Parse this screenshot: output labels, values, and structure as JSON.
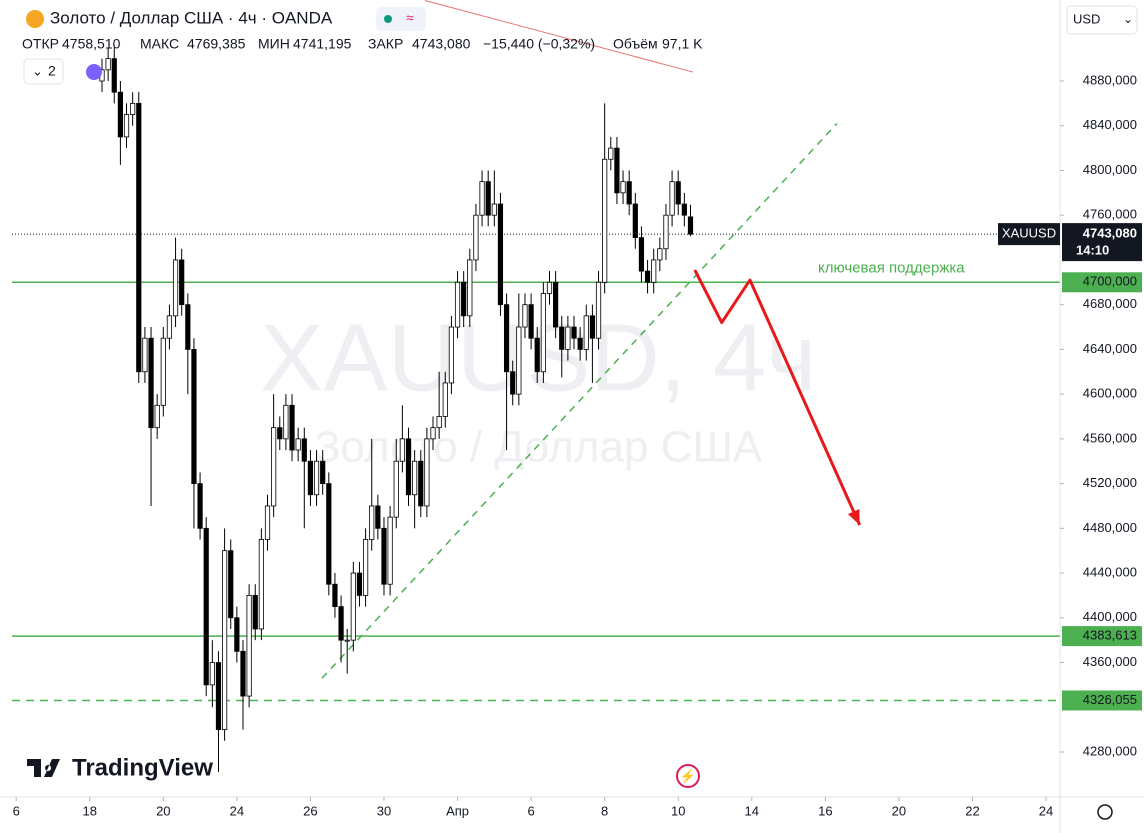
{
  "chart_data": {
    "type": "candlestick",
    "header": {
      "title": "Золото / Доллар США · 4ч · OANDA",
      "open_label": "ОТКР",
      "open": "4758,510",
      "high_label": "МАКС",
      "high": "4769,385",
      "low_label": "МИН",
      "low": "4741,195",
      "close_label": "ЗАКР",
      "close": "4743,080",
      "change": "−15,440 (−0,32%)",
      "volume_label": "Объём",
      "volume": "97,1 K",
      "indicators_count": "2"
    },
    "currency": "USD",
    "symbol_tag": "XAUUSD",
    "countdown": "14:10",
    "watermark": {
      "symbol": "XAUUSD, 4ч",
      "name": "Золото / Доллар США"
    },
    "brand": "TradingView",
    "annotation": "ключевая поддержка",
    "open": [
      4880,
      4890,
      4900,
      4870,
      4830,
      4850,
      4860,
      4620,
      4650,
      4570,
      4590,
      4650,
      4670,
      4720,
      4680,
      4640,
      4520,
      4480,
      4340,
      4360,
      4300,
      4460,
      4400,
      4370,
      4330,
      4420,
      4390,
      4470,
      4500,
      4570,
      4560,
      4590,
      4550,
      4560,
      4540,
      4510,
      4540,
      4520,
      4430,
      4410,
      4380,
      4380,
      4440,
      4420,
      4470,
      4500,
      4480,
      4430,
      4490,
      4540,
      4560,
      4510,
      4540,
      4500,
      4560,
      4570,
      4580,
      4610,
      4660,
      4700,
      4670,
      4720,
      4760,
      4790,
      4760,
      4770,
      4680,
      4620,
      4600,
      4660,
      4680,
      4650,
      4620,
      4690,
      4700,
      4660,
      4640,
      4660,
      4650,
      4640,
      4670,
      4650,
      4700,
      4810,
      4820,
      4780,
      4790,
      4770,
      4740,
      4710,
      4700,
      4720,
      4730,
      4760,
      4790,
      4770,
      4758.51
    ],
    "high": [
      4900,
      4910,
      4910,
      4880,
      4860,
      4870,
      4870,
      4660,
      4660,
      4600,
      4660,
      4680,
      4740,
      4730,
      4690,
      4650,
      4530,
      4490,
      4380,
      4370,
      4480,
      4470,
      4410,
      4380,
      4430,
      4430,
      4480,
      4510,
      4600,
      4580,
      4600,
      4600,
      4570,
      4570,
      4550,
      4550,
      4550,
      4530,
      4440,
      4420,
      4390,
      4450,
      4450,
      4480,
      4560,
      4510,
      4490,
      4500,
      4560,
      4590,
      4570,
      4550,
      4550,
      4570,
      4580,
      4620,
      4620,
      4670,
      4710,
      4710,
      4730,
      4770,
      4800,
      4800,
      4800,
      4780,
      4690,
      4630,
      4690,
      4690,
      4690,
      4660,
      4700,
      4710,
      4710,
      4670,
      4670,
      4670,
      4660,
      4680,
      4680,
      4710,
      4860,
      4830,
      4830,
      4800,
      4800,
      4780,
      4750,
      4720,
      4730,
      4740,
      4770,
      4800,
      4800,
      4780,
      4769.385
    ],
    "low": [
      4870,
      4880,
      4860,
      4805,
      4820,
      4840,
      4610,
      4610,
      4500,
      4560,
      4580,
      4640,
      4660,
      4670,
      4600,
      4480,
      4470,
      4330,
      4320,
      4262,
      4290,
      4390,
      4360,
      4300,
      4320,
      4380,
      4380,
      4460,
      4490,
      4550,
      4550,
      4540,
      4540,
      4480,
      4500,
      4500,
      4510,
      4420,
      4400,
      4360,
      4350,
      4370,
      4410,
      4410,
      4460,
      4470,
      4420,
      4420,
      4480,
      4530,
      4500,
      4480,
      4490,
      4490,
      4550,
      4560,
      4570,
      4600,
      4650,
      4660,
      4660,
      4710,
      4750,
      4750,
      4750,
      4670,
      4550,
      4590,
      4590,
      4650,
      4640,
      4610,
      4610,
      4680,
      4650,
      4615,
      4630,
      4640,
      4630,
      4630,
      4610,
      4640,
      4690,
      4800,
      4770,
      4770,
      4760,
      4730,
      4700,
      4690,
      4690,
      4710,
      4720,
      4750,
      4760,
      4750,
      4741.195
    ],
    "close": [
      4890,
      4900,
      4870,
      4830,
      4850,
      4860,
      4620,
      4650,
      4570,
      4590,
      4650,
      4670,
      4720,
      4680,
      4640,
      4520,
      4480,
      4340,
      4360,
      4300,
      4460,
      4400,
      4370,
      4330,
      4420,
      4390,
      4470,
      4500,
      4570,
      4560,
      4590,
      4550,
      4560,
      4540,
      4510,
      4540,
      4520,
      4430,
      4410,
      4380,
      4380,
      4440,
      4420,
      4470,
      4500,
      4480,
      4430,
      4490,
      4540,
      4560,
      4510,
      4540,
      4500,
      4560,
      4570,
      4580,
      4610,
      4660,
      4700,
      4670,
      4720,
      4760,
      4790,
      4760,
      4770,
      4680,
      4620,
      4600,
      4660,
      4680,
      4650,
      4620,
      4690,
      4700,
      4660,
      4640,
      4660,
      4650,
      4640,
      4670,
      4650,
      4700,
      4810,
      4820,
      4780,
      4790,
      4770,
      4740,
      4710,
      4700,
      4720,
      4730,
      4760,
      4790,
      4770,
      4760,
      4743.08
    ],
    "up_color": "#ffffff",
    "down_color": "#000000",
    "xticks": [
      {
        "value": -14,
        "label": "6"
      },
      {
        "value": -2,
        "label": "18"
      },
      {
        "value": 10,
        "label": "20"
      },
      {
        "value": 22,
        "label": "24"
      },
      {
        "value": 34,
        "label": "26"
      },
      {
        "value": 46,
        "label": "30"
      },
      {
        "value": 58,
        "label": "Апр"
      },
      {
        "value": 70,
        "label": "6"
      },
      {
        "value": 82,
        "label": "8"
      },
      {
        "value": 94,
        "label": "10"
      },
      {
        "value": 106,
        "label": "14"
      },
      {
        "value": 118,
        "label": "16"
      },
      {
        "value": 130,
        "label": "20"
      },
      {
        "value": 142,
        "label": "22"
      },
      {
        "value": 154,
        "label": "24"
      }
    ],
    "yticks": [
      {
        "value": 4280,
        "label": "4280,000"
      },
      {
        "value": 4360,
        "label": "4360,000"
      },
      {
        "value": 4400,
        "label": "4400,000"
      },
      {
        "value": 4440,
        "label": "4440,000"
      },
      {
        "value": 4480,
        "label": "4480,000"
      },
      {
        "value": 4520,
        "label": "4520,000"
      },
      {
        "value": 4560,
        "label": "4560,000"
      },
      {
        "value": 4600,
        "label": "4600,000"
      },
      {
        "value": 4640,
        "label": "4640,000"
      },
      {
        "value": 4680,
        "label": "4680,000"
      },
      {
        "value": 4760,
        "label": "4760,000"
      },
      {
        "value": 4800,
        "label": "4800,000"
      },
      {
        "value": 4840,
        "label": "4840,000"
      },
      {
        "value": 4880,
        "label": "4880,000"
      }
    ],
    "hlines": [
      {
        "value": 4700,
        "label": "4700,000",
        "style": "solid",
        "color": "#4caf50"
      },
      {
        "value": 4383.613,
        "label": "4383,613",
        "style": "solid",
        "color": "#4caf50"
      },
      {
        "value": 4326.055,
        "label": "4326,055",
        "style": "dashed",
        "color": "#4caf50"
      }
    ],
    "last_price": {
      "value": 4743.08,
      "label": "4743,080"
    },
    "trendline": {
      "x": [
        35.9,
        119.9
      ],
      "y": [
        4346,
        4842
      ],
      "color": "#4caf50"
    },
    "forecast": {
      "x": [
        96.7,
        101.1,
        105.7,
        123.6
      ],
      "y": [
        4711,
        4664,
        4702,
        4483
      ],
      "color": "#e8191b"
    },
    "old_drawing": {
      "x": [
        52.7,
        96.4
      ],
      "y": [
        4952,
        4888
      ],
      "color": "#e57373"
    }
  }
}
